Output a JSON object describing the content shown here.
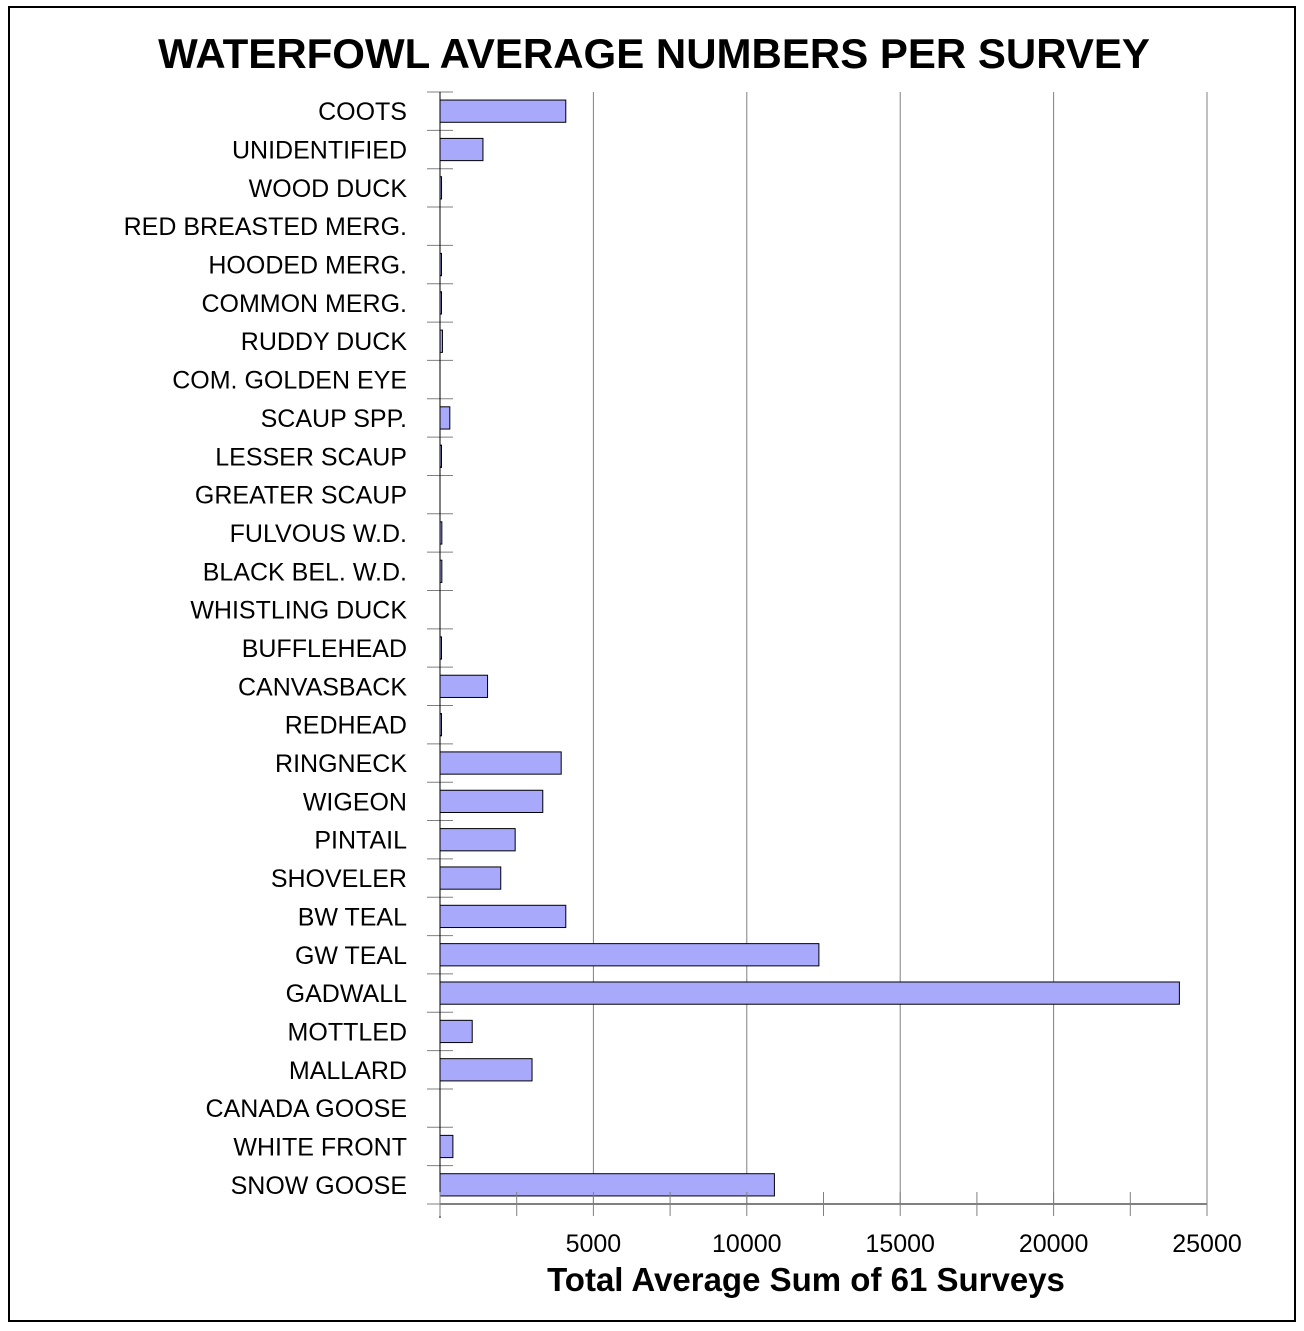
{
  "chart_data": {
    "type": "bar",
    "orientation": "horizontal",
    "title": "WATERFOWL AVERAGE NUMBERS PER SURVEY",
    "xlabel": "Total Average Sum of 61 Surveys",
    "ylabel": "",
    "xlim": [
      0,
      25000
    ],
    "xticks": [
      5000,
      10000,
      15000,
      20000,
      25000
    ],
    "grid": "vertical",
    "bar_color": "#a9a9fc",
    "categories": [
      "COOTS",
      "UNIDENTIFIED",
      "WOOD DUCK",
      "RED BREASTED MERG.",
      "HOODED MERG.",
      "COMMON MERG.",
      "RUDDY DUCK",
      "COM. GOLDEN EYE",
      "SCAUP SPP.",
      "LESSER SCAUP",
      "GREATER SCAUP",
      "FULVOUS W.D.",
      "BLACK BEL. W.D.",
      "WHISTLING DUCK",
      "BUFFLEHEAD",
      "CANVASBACK",
      "REDHEAD",
      "RINGNECK",
      "WIGEON",
      "PINTAIL",
      "SHOVELER",
      "BW TEAL",
      "GW TEAL",
      "GADWALL",
      "MOTTLED",
      "MALLARD",
      "CANADA GOOSE",
      "WHITE FRONT",
      "SNOW GOOSE"
    ],
    "values": [
      4100,
      1400,
      50,
      0,
      40,
      40,
      80,
      0,
      320,
      40,
      0,
      60,
      60,
      0,
      40,
      1550,
      40,
      3950,
      3350,
      2450,
      1980,
      4100,
      12350,
      24100,
      1050,
      3000,
      0,
      420,
      10900
    ]
  }
}
